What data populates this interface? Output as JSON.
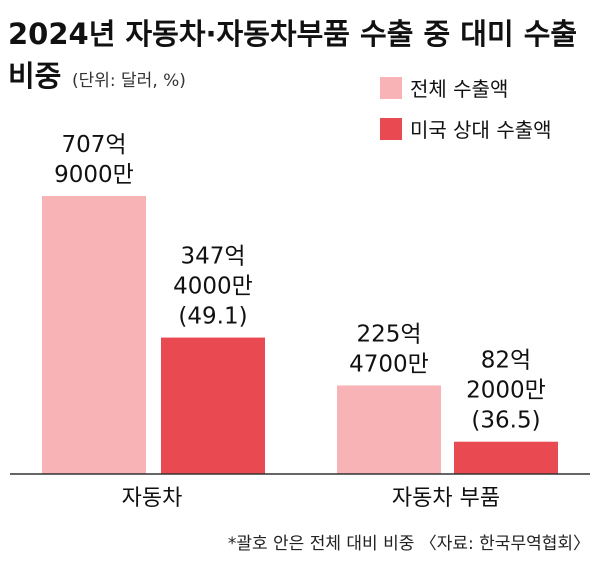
{
  "chart_data": {
    "type": "bar",
    "title": "2024년 자동차·자동차부품 수출 중 대미 수출",
    "title_line2": "비중",
    "unit_note": "(단위: 달러, %)",
    "categories": [
      "자동차",
      "자동차 부품"
    ],
    "series": [
      {
        "name": "전체 수출액",
        "color": "#f7b3b5",
        "values": [
          70790000000,
          22547000000
        ],
        "labels": [
          [
            "707억",
            "9000만"
          ],
          [
            "225억",
            "4700만"
          ]
        ]
      },
      {
        "name": "미국 상대 수출액",
        "color": "#e94a51",
        "values": [
          34740000000,
          8220000000
        ],
        "labels": [
          [
            "347억",
            "4000만",
            "(49.1)"
          ],
          [
            "82억",
            "2000만",
            "(36.5)"
          ]
        ]
      }
    ],
    "ylim": [
      0,
      70790000000
    ],
    "legend_position": "top-right",
    "footnote": "*괄호 안은 전체 대비 비중 〈자료: 한국무역협회〉"
  }
}
